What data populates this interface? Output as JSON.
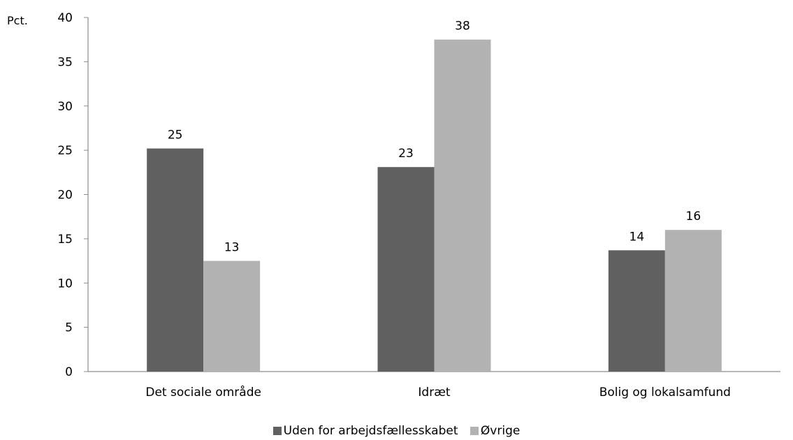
{
  "chart_data": {
    "type": "bar",
    "ylabel": "Pct.",
    "xlabel": "",
    "ylim": [
      0,
      40
    ],
    "yticks": [
      0,
      5,
      10,
      15,
      20,
      25,
      30,
      35,
      40
    ],
    "categories": [
      "Det sociale område",
      "Idræt",
      "Bolig og lokalsamfund"
    ],
    "series": [
      {
        "name": "Uden for arbejdsfællesskabet",
        "color": "#606060",
        "values": [
          25.2,
          23.1,
          13.7
        ],
        "labels": [
          "25",
          "23",
          "14"
        ]
      },
      {
        "name": "Øvrige",
        "color": "#b2b2b2",
        "values": [
          12.5,
          37.5,
          16.0
        ],
        "labels": [
          "13",
          "38",
          "16"
        ]
      }
    ],
    "grid": false,
    "legend": "bottom"
  }
}
